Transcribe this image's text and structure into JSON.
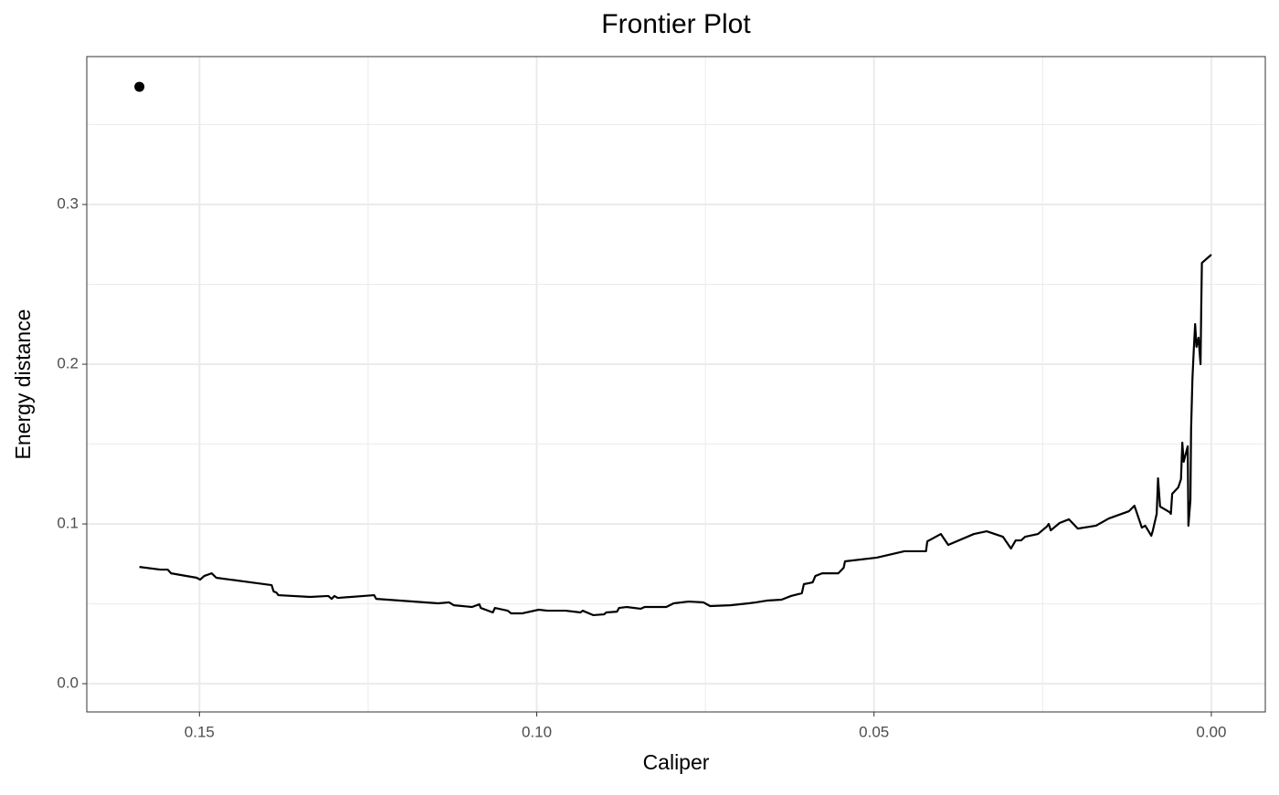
{
  "chart_data": {
    "type": "line",
    "title": "Frontier Plot",
    "x_label": "Caliper",
    "y_label": "Energy distance",
    "xlim": [
      0.1667,
      -0.008
    ],
    "ylim": [
      -0.0177,
      0.3926
    ],
    "xticks": [
      0.15,
      {
        "value": 0.1,
        "label": "0.10"
      },
      0.05,
      {
        "value": 0,
        "label": "0.00"
      }
    ],
    "yticks": [
      {
        "value": 0,
        "label": "0.0"
      },
      0.1,
      0.2,
      0.3
    ],
    "x_minor_grid": [
      0.125,
      0.075,
      0.025
    ],
    "y_minor_grid": [
      0.05,
      0.15,
      0.25,
      0.35
    ],
    "grid": true,
    "series": [
      {
        "style": "line",
        "color": "#000000",
        "x": [
          0.1589,
          0.1558,
          0.1547,
          0.1542,
          0.1504,
          0.1499,
          0.1493,
          0.1482,
          0.1475,
          0.1393,
          0.139,
          0.1386,
          0.1383,
          0.1336,
          0.1309,
          0.1304,
          0.13,
          0.1295,
          0.1241,
          0.1238,
          0.1146,
          0.113,
          0.1123,
          0.1096,
          0.1085,
          0.1083,
          0.1065,
          0.1062,
          0.1043,
          0.1038,
          0.1022,
          0.0997,
          0.0984,
          0.0957,
          0.0935,
          0.0932,
          0.0916,
          0.09,
          0.0897,
          0.0881,
          0.0878,
          0.0867,
          0.0846,
          0.084,
          0.0808,
          0.0797,
          0.0775,
          0.0753,
          0.0743,
          0.0713,
          0.0686,
          0.0675,
          0.0659,
          0.0637,
          0.0623,
          0.0607,
          0.0604,
          0.0591,
          0.0587,
          0.0577,
          0.0553,
          0.0545,
          0.0543,
          0.0496,
          0.0455,
          0.0423,
          0.0421,
          0.0401,
          0.039,
          0.0352,
          0.0333,
          0.0309,
          0.0297,
          0.029,
          0.0282,
          0.0276,
          0.0257,
          0.0244,
          0.0241,
          0.0238,
          0.0225,
          0.0211,
          0.0198,
          0.0171,
          0.0152,
          0.0122,
          0.0114,
          0.0103,
          0.0098,
          0.0089,
          0.0087,
          0.0081,
          0.0079,
          0.0076,
          0.0062,
          0.006,
          0.0058,
          0.0049,
          0.0045,
          0.0043,
          0.0041,
          0.0035,
          0.0034,
          0.0031,
          0.003,
          0.0028,
          0.0026,
          0.0024,
          0.0022,
          0.0019,
          0.0016,
          0.0015,
          0.0014,
          0.0
        ],
        "values": [
          0.0731,
          0.0714,
          0.0714,
          0.0691,
          0.0663,
          0.0651,
          0.0674,
          0.0691,
          0.0663,
          0.0617,
          0.0577,
          0.0571,
          0.0554,
          0.0543,
          0.0549,
          0.0531,
          0.0549,
          0.0537,
          0.0554,
          0.0531,
          0.0503,
          0.0509,
          0.0491,
          0.048,
          0.0497,
          0.0474,
          0.0446,
          0.0474,
          0.0457,
          0.044,
          0.044,
          0.0463,
          0.0457,
          0.0457,
          0.0446,
          0.0457,
          0.0429,
          0.0434,
          0.0446,
          0.0451,
          0.0474,
          0.048,
          0.0469,
          0.048,
          0.048,
          0.0503,
          0.0514,
          0.0509,
          0.0486,
          0.0491,
          0.0503,
          0.0509,
          0.052,
          0.0526,
          0.0549,
          0.0566,
          0.0623,
          0.0634,
          0.0674,
          0.0691,
          0.0691,
          0.0726,
          0.0766,
          0.0789,
          0.0829,
          0.0829,
          0.0891,
          0.0937,
          0.0869,
          0.0937,
          0.0954,
          0.092,
          0.0846,
          0.0897,
          0.0897,
          0.092,
          0.0937,
          0.0983,
          0.1,
          0.096,
          0.1006,
          0.1029,
          0.0971,
          0.0989,
          0.1034,
          0.108,
          0.1114,
          0.0977,
          0.0989,
          0.0926,
          0.0954,
          0.1063,
          0.1286,
          0.1109,
          0.1074,
          0.1063,
          0.1189,
          0.1229,
          0.128,
          0.1509,
          0.1389,
          0.1486,
          0.0989,
          0.1149,
          0.1594,
          0.1909,
          0.2091,
          0.2251,
          0.2109,
          0.2166,
          0.2,
          0.2337,
          0.2634,
          0.2686
        ]
      },
      {
        "style": "point",
        "color": "#000000",
        "x": [
          0.1589
        ],
        "values": [
          0.3737
        ]
      }
    ]
  }
}
